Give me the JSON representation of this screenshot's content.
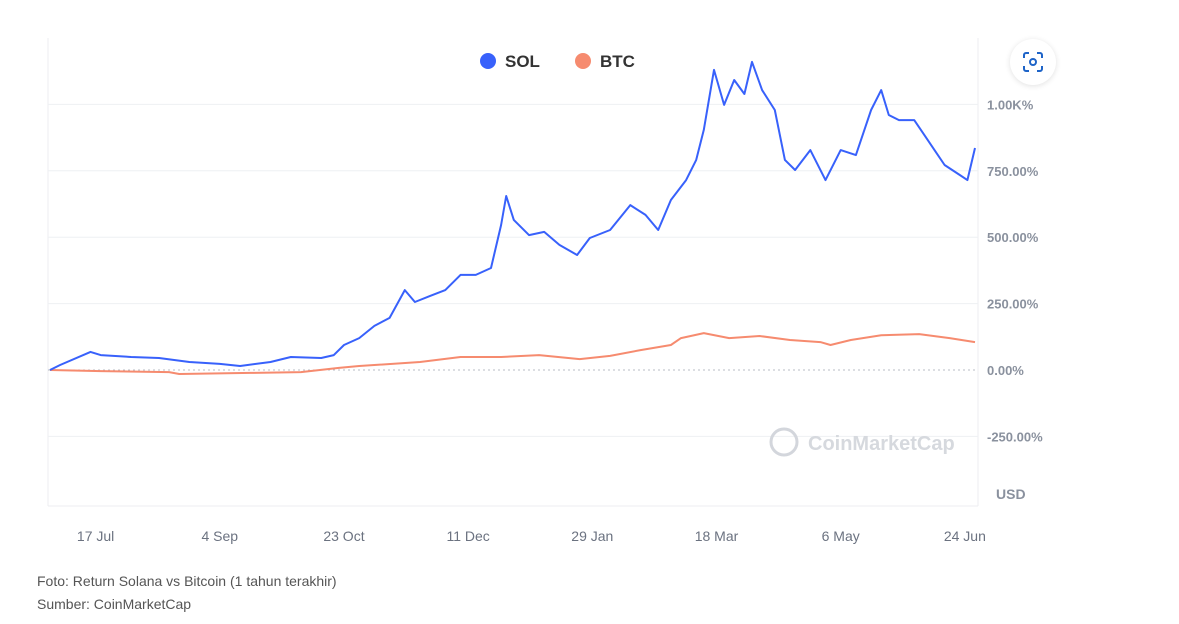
{
  "chart_data": {
    "type": "line",
    "title": "",
    "xlabel": "",
    "ylabel": "USD",
    "x_unit": "days since start (1-year window)",
    "xlim": [
      0,
      365
    ],
    "ylim": [
      -350,
      1200
    ],
    "yticks": [
      -250,
      0,
      250,
      500,
      750,
      1000
    ],
    "ytick_labels": [
      "-250.00%",
      "0.00%",
      "250.00%",
      "500.00%",
      "750.00%",
      "1.00K%"
    ],
    "xtick_days": [
      18,
      67,
      116,
      165,
      214,
      263,
      312,
      361
    ],
    "xtick_labels": [
      "17 Jul",
      "4 Sep",
      "23 Oct",
      "11 Dec",
      "29 Jan",
      "18 Mar",
      "6 May",
      "24 Jun"
    ],
    "legend_position": "top-center",
    "grid": true,
    "watermark": "CoinMarketCap",
    "series": [
      {
        "name": "SOL",
        "color": "#3861fb",
        "points": [
          [
            0,
            0
          ],
          [
            4,
            19
          ],
          [
            16,
            68
          ],
          [
            20,
            56
          ],
          [
            32,
            49
          ],
          [
            43,
            45
          ],
          [
            55,
            30
          ],
          [
            67,
            23
          ],
          [
            75,
            15
          ],
          [
            87,
            30
          ],
          [
            95,
            49
          ],
          [
            107,
            45
          ],
          [
            112,
            56
          ],
          [
            116,
            94
          ],
          [
            122,
            120
          ],
          [
            128,
            166
          ],
          [
            134,
            196
          ],
          [
            140,
            301
          ],
          [
            144,
            256
          ],
          [
            150,
            279
          ],
          [
            156,
            301
          ],
          [
            162,
            358
          ],
          [
            168,
            358
          ],
          [
            174,
            384
          ],
          [
            178,
            546
          ],
          [
            180,
            655
          ],
          [
            183,
            565
          ],
          [
            189,
            508
          ],
          [
            195,
            520
          ],
          [
            201,
            471
          ],
          [
            208,
            433
          ],
          [
            213,
            497
          ],
          [
            221,
            527
          ],
          [
            229,
            621
          ],
          [
            235,
            584
          ],
          [
            240,
            527
          ],
          [
            245,
            640
          ],
          [
            251,
            715
          ],
          [
            255,
            791
          ],
          [
            258,
            904
          ],
          [
            262,
            1130
          ],
          [
            266,
            998
          ],
          [
            270,
            1092
          ],
          [
            274,
            1039
          ],
          [
            277,
            1160
          ],
          [
            281,
            1054
          ],
          [
            286,
            979
          ],
          [
            290,
            791
          ],
          [
            294,
            753
          ],
          [
            300,
            828
          ],
          [
            306,
            715
          ],
          [
            312,
            828
          ],
          [
            318,
            809
          ],
          [
            324,
            979
          ],
          [
            328,
            1054
          ],
          [
            331,
            960
          ],
          [
            335,
            941
          ],
          [
            341,
            941
          ],
          [
            345,
            885
          ],
          [
            349,
            828
          ],
          [
            353,
            772
          ],
          [
            359,
            734
          ],
          [
            362,
            715
          ],
          [
            365,
            836
          ]
        ]
      },
      {
        "name": "BTC",
        "color": "#f68b6f",
        "points": [
          [
            0,
            0
          ],
          [
            20,
            -4
          ],
          [
            47,
            -8
          ],
          [
            51,
            -15
          ],
          [
            79,
            -11
          ],
          [
            99,
            -8
          ],
          [
            114,
            8
          ],
          [
            122,
            15
          ],
          [
            146,
            30
          ],
          [
            162,
            49
          ],
          [
            178,
            49
          ],
          [
            193,
            56
          ],
          [
            209,
            41
          ],
          [
            221,
            53
          ],
          [
            233,
            75
          ],
          [
            245,
            94
          ],
          [
            249,
            120
          ],
          [
            258,
            139
          ],
          [
            268,
            120
          ],
          [
            280,
            128
          ],
          [
            292,
            113
          ],
          [
            304,
            105
          ],
          [
            308,
            94
          ],
          [
            316,
            113
          ],
          [
            328,
            131
          ],
          [
            343,
            135
          ],
          [
            355,
            120
          ],
          [
            365,
            105
          ]
        ]
      }
    ]
  },
  "caption": {
    "line1": "Foto: Return Solana vs Bitcoin (1 tahun terakhir)",
    "line2": "Sumber: CoinMarketCap"
  },
  "controls": {
    "expand_icon": "fullscreen-icon"
  }
}
